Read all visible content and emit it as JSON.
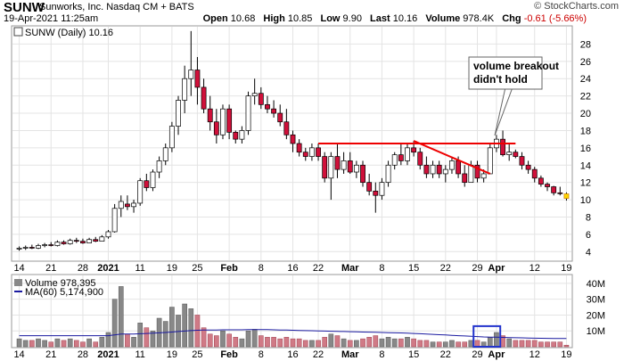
{
  "header": {
    "symbol": "SUNW",
    "company": "Sunworks, Inc. Nasdaq CM + BATS",
    "date": "19-Apr-2021 11:25am",
    "watermark": "© StockCharts.com",
    "open_label": "Open",
    "open": "10.68",
    "high_label": "High",
    "high": "10.85",
    "low_label": "Low",
    "low": "9.90",
    "last_label": "Last",
    "last": "10.16",
    "volume_label": "Volume",
    "volume": "978.4K",
    "chg_label": "Chg",
    "chg": "-0.61 (-5.66%)"
  },
  "price_panel": {
    "legend": "SUNW (Daily) 10.16",
    "annotation_line1": "volume breakout",
    "annotation_line2": "didn't hold"
  },
  "volume_panel": {
    "legend_volume": "Volume 978,395",
    "legend_ma": "MA(60) 5,174,900"
  },
  "chart_data": {
    "type": "candlestick",
    "title": "SUNW (Daily) 10.16",
    "y_ticks": [
      4,
      6,
      8,
      10,
      12,
      14,
      16,
      18,
      20,
      22,
      24,
      26,
      28
    ],
    "ylim": [
      3,
      30
    ],
    "volume_ticks": [
      "10M",
      "20M",
      "30M",
      "40M"
    ],
    "volume_ylim": [
      0,
      45
    ],
    "x_ticks": [
      {
        "label": "14",
        "index": 0
      },
      {
        "label": "21",
        "index": 5
      },
      {
        "label": "28",
        "index": 10
      },
      {
        "label": "2021",
        "index": 14,
        "bold": true
      },
      {
        "label": "11",
        "index": 19
      },
      {
        "label": "19",
        "index": 24
      },
      {
        "label": "25",
        "index": 28
      },
      {
        "label": "Feb",
        "index": 33,
        "bold": true
      },
      {
        "label": "8",
        "index": 38
      },
      {
        "label": "16",
        "index": 43
      },
      {
        "label": "22",
        "index": 47
      },
      {
        "label": "Mar",
        "index": 52,
        "bold": true
      },
      {
        "label": "8",
        "index": 57
      },
      {
        "label": "15",
        "index": 62
      },
      {
        "label": "22",
        "index": 67
      },
      {
        "label": "29",
        "index": 72
      },
      {
        "label": "Apr",
        "index": 75,
        "bold": true
      },
      {
        "label": "12",
        "index": 81
      },
      {
        "label": "19",
        "index": 86
      }
    ],
    "candles": [
      {
        "o": 4.3,
        "h": 4.6,
        "l": 4.1,
        "c": 4.4,
        "v": 5
      },
      {
        "o": 4.4,
        "h": 4.7,
        "l": 4.2,
        "c": 4.5,
        "v": 4
      },
      {
        "o": 4.5,
        "h": 4.8,
        "l": 4.3,
        "c": 4.4,
        "v": 4
      },
      {
        "o": 4.4,
        "h": 4.9,
        "l": 4.3,
        "c": 4.7,
        "v": 5
      },
      {
        "o": 4.7,
        "h": 5.0,
        "l": 4.5,
        "c": 4.8,
        "v": 4
      },
      {
        "o": 4.8,
        "h": 5.1,
        "l": 4.6,
        "c": 4.7,
        "v": 3
      },
      {
        "o": 4.7,
        "h": 5.3,
        "l": 4.6,
        "c": 5.1,
        "v": 5
      },
      {
        "o": 5.1,
        "h": 5.3,
        "l": 4.8,
        "c": 4.9,
        "v": 4
      },
      {
        "o": 4.9,
        "h": 5.5,
        "l": 4.8,
        "c": 5.3,
        "v": 5
      },
      {
        "o": 5.3,
        "h": 5.6,
        "l": 5.0,
        "c": 5.2,
        "v": 4
      },
      {
        "o": 5.2,
        "h": 5.5,
        "l": 4.9,
        "c": 5.0,
        "v": 3
      },
      {
        "o": 5.0,
        "h": 5.6,
        "l": 5.0,
        "c": 5.4,
        "v": 5
      },
      {
        "o": 5.4,
        "h": 5.7,
        "l": 5.1,
        "c": 5.2,
        "v": 3
      },
      {
        "o": 5.2,
        "h": 5.9,
        "l": 5.2,
        "c": 5.7,
        "v": 6
      },
      {
        "o": 5.7,
        "h": 6.5,
        "l": 5.5,
        "c": 6.3,
        "v": 9
      },
      {
        "o": 6.3,
        "h": 9.5,
        "l": 6.2,
        "c": 9.0,
        "v": 30
      },
      {
        "o": 9.0,
        "h": 10.5,
        "l": 8.0,
        "c": 9.8,
        "v": 38
      },
      {
        "o": 9.5,
        "h": 10.5,
        "l": 8.8,
        "c": 9.2,
        "v": 8
      },
      {
        "o": 9.2,
        "h": 10.0,
        "l": 8.5,
        "c": 9.6,
        "v": 6
      },
      {
        "o": 9.6,
        "h": 12.5,
        "l": 9.3,
        "c": 12.2,
        "v": 15
      },
      {
        "o": 12.2,
        "h": 13.0,
        "l": 11.0,
        "c": 11.4,
        "v": 12
      },
      {
        "o": 11.4,
        "h": 13.5,
        "l": 11.0,
        "c": 13.2,
        "v": 10
      },
      {
        "o": 13.2,
        "h": 15.0,
        "l": 12.5,
        "c": 14.5,
        "v": 18
      },
      {
        "o": 14.5,
        "h": 16.5,
        "l": 14.0,
        "c": 16.0,
        "v": 16
      },
      {
        "o": 16.0,
        "h": 19.0,
        "l": 15.5,
        "c": 18.5,
        "v": 25
      },
      {
        "o": 18.5,
        "h": 22.0,
        "l": 17.5,
        "c": 21.5,
        "v": 20
      },
      {
        "o": 21.5,
        "h": 25.5,
        "l": 20.0,
        "c": 24.0,
        "v": 27
      },
      {
        "o": 24.0,
        "h": 29.5,
        "l": 22.0,
        "c": 25.0,
        "v": 24
      },
      {
        "o": 25.0,
        "h": 26.5,
        "l": 21.0,
        "c": 23.0,
        "v": 20
      },
      {
        "o": 23.0,
        "h": 24.0,
        "l": 20.0,
        "c": 20.5,
        "v": 12
      },
      {
        "o": 20.5,
        "h": 22.0,
        "l": 18.0,
        "c": 19.0,
        "v": 8
      },
      {
        "o": 19.0,
        "h": 20.5,
        "l": 16.5,
        "c": 17.5,
        "v": 7
      },
      {
        "o": 17.5,
        "h": 21.0,
        "l": 17.0,
        "c": 20.5,
        "v": 10
      },
      {
        "o": 20.5,
        "h": 21.0,
        "l": 17.0,
        "c": 17.8,
        "v": 8
      },
      {
        "o": 17.8,
        "h": 18.0,
        "l": 16.5,
        "c": 17.0,
        "v": 6
      },
      {
        "o": 17.0,
        "h": 18.5,
        "l": 16.5,
        "c": 18.0,
        "v": 5
      },
      {
        "o": 18.0,
        "h": 22.5,
        "l": 17.5,
        "c": 22.0,
        "v": 10
      },
      {
        "o": 22.0,
        "h": 24.0,
        "l": 21.0,
        "c": 22.3,
        "v": 11
      },
      {
        "o": 22.3,
        "h": 23.0,
        "l": 20.5,
        "c": 21.0,
        "v": 7
      },
      {
        "o": 21.0,
        "h": 22.0,
        "l": 20.0,
        "c": 20.5,
        "v": 6
      },
      {
        "o": 20.5,
        "h": 21.5,
        "l": 19.5,
        "c": 20.0,
        "v": 6
      },
      {
        "o": 20.0,
        "h": 21.0,
        "l": 18.5,
        "c": 19.0,
        "v": 5
      },
      {
        "o": 19.0,
        "h": 20.5,
        "l": 17.0,
        "c": 17.5,
        "v": 6
      },
      {
        "o": 17.5,
        "h": 18.0,
        "l": 15.5,
        "c": 16.5,
        "v": 5
      },
      {
        "o": 16.5,
        "h": 17.0,
        "l": 15.0,
        "c": 15.5,
        "v": 5
      },
      {
        "o": 15.5,
        "h": 16.0,
        "l": 14.5,
        "c": 15.0,
        "v": 4
      },
      {
        "o": 15.0,
        "h": 16.5,
        "l": 14.5,
        "c": 16.0,
        "v": 4
      },
      {
        "o": 16.0,
        "h": 16.5,
        "l": 14.5,
        "c": 15.0,
        "v": 4
      },
      {
        "o": 15.0,
        "h": 15.5,
        "l": 12.0,
        "c": 12.5,
        "v": 6
      },
      {
        "o": 12.5,
        "h": 15.5,
        "l": 10.0,
        "c": 15.0,
        "v": 8
      },
      {
        "o": 15.0,
        "h": 16.5,
        "l": 12.5,
        "c": 13.5,
        "v": 7
      },
      {
        "o": 13.5,
        "h": 15.5,
        "l": 13.0,
        "c": 14.5,
        "v": 5
      },
      {
        "o": 14.5,
        "h": 15.5,
        "l": 13.0,
        "c": 13.2,
        "v": 4
      },
      {
        "o": 13.2,
        "h": 14.5,
        "l": 12.5,
        "c": 14.0,
        "v": 4
      },
      {
        "o": 14.0,
        "h": 14.5,
        "l": 11.5,
        "c": 12.0,
        "v": 5
      },
      {
        "o": 12.0,
        "h": 13.0,
        "l": 10.5,
        "c": 11.0,
        "v": 6
      },
      {
        "o": 11.0,
        "h": 12.0,
        "l": 8.5,
        "c": 10.5,
        "v": 7
      },
      {
        "o": 10.5,
        "h": 12.5,
        "l": 10.0,
        "c": 12.0,
        "v": 5
      },
      {
        "o": 12.0,
        "h": 14.5,
        "l": 11.5,
        "c": 14.0,
        "v": 6
      },
      {
        "o": 14.0,
        "h": 15.5,
        "l": 13.5,
        "c": 15.2,
        "v": 5
      },
      {
        "o": 15.2,
        "h": 16.5,
        "l": 14.0,
        "c": 14.5,
        "v": 5
      },
      {
        "o": 14.5,
        "h": 16.5,
        "l": 14.0,
        "c": 16.0,
        "v": 6
      },
      {
        "o": 16.0,
        "h": 16.8,
        "l": 15.0,
        "c": 15.5,
        "v": 5
      },
      {
        "o": 15.5,
        "h": 16.0,
        "l": 13.5,
        "c": 14.0,
        "v": 4
      },
      {
        "o": 14.0,
        "h": 15.0,
        "l": 12.5,
        "c": 13.0,
        "v": 4
      },
      {
        "o": 13.0,
        "h": 14.5,
        "l": 12.5,
        "c": 14.0,
        "v": 3
      },
      {
        "o": 14.0,
        "h": 14.5,
        "l": 12.5,
        "c": 13.0,
        "v": 3
      },
      {
        "o": 13.0,
        "h": 14.0,
        "l": 12.0,
        "c": 13.5,
        "v": 3
      },
      {
        "o": 13.5,
        "h": 15.0,
        "l": 13.0,
        "c": 14.5,
        "v": 4
      },
      {
        "o": 14.5,
        "h": 15.0,
        "l": 12.5,
        "c": 13.0,
        "v": 3
      },
      {
        "o": 13.0,
        "h": 14.0,
        "l": 11.5,
        "c": 12.0,
        "v": 3
      },
      {
        "o": 12.0,
        "h": 14.5,
        "l": 12.0,
        "c": 14.0,
        "v": 4
      },
      {
        "o": 14.0,
        "h": 14.5,
        "l": 12.0,
        "c": 12.5,
        "v": 4
      },
      {
        "o": 12.5,
        "h": 13.5,
        "l": 12.0,
        "c": 13.0,
        "v": 3
      },
      {
        "o": 13.0,
        "h": 16.5,
        "l": 13.0,
        "c": 16.0,
        "v": 6
      },
      {
        "o": 16.0,
        "h": 17.5,
        "l": 15.5,
        "c": 17.0,
        "v": 9
      },
      {
        "o": 17.0,
        "h": 18.0,
        "l": 15.0,
        "c": 15.2,
        "v": 7
      },
      {
        "o": 15.2,
        "h": 16.5,
        "l": 14.5,
        "c": 15.5,
        "v": 5
      },
      {
        "o": 15.5,
        "h": 15.8,
        "l": 14.8,
        "c": 15.0,
        "v": 4
      },
      {
        "o": 15.0,
        "h": 15.5,
        "l": 13.5,
        "c": 14.0,
        "v": 4
      },
      {
        "o": 14.0,
        "h": 14.5,
        "l": 13.0,
        "c": 13.5,
        "v": 4
      },
      {
        "o": 13.5,
        "h": 13.8,
        "l": 12.0,
        "c": 12.5,
        "v": 4
      },
      {
        "o": 12.5,
        "h": 12.8,
        "l": 11.5,
        "c": 11.8,
        "v": 3
      },
      {
        "o": 11.8,
        "h": 12.0,
        "l": 11.0,
        "c": 11.5,
        "v": 3
      },
      {
        "o": 11.5,
        "h": 11.6,
        "l": 10.5,
        "c": 10.8,
        "v": 3
      },
      {
        "o": 10.8,
        "h": 11.5,
        "l": 10.5,
        "c": 10.77,
        "v": 3
      },
      {
        "o": 10.68,
        "h": 10.85,
        "l": 9.9,
        "c": 10.16,
        "v": 1
      }
    ],
    "ma60": [
      7,
      7,
      7,
      7,
      7,
      7,
      7,
      7,
      7,
      7,
      7,
      7,
      7,
      7,
      7,
      7.5,
      8,
      8,
      8,
      8.2,
      8.4,
      8.6,
      8.8,
      9,
      9.3,
      9.6,
      9.9,
      10.2,
      10.4,
      10.5,
      10.6,
      10.6,
      10.7,
      10.7,
      10.7,
      10.7,
      10.8,
      10.8,
      10.8,
      10.8,
      10.7,
      10.6,
      10.5,
      10.4,
      10.3,
      10.2,
      10.1,
      10,
      9.9,
      9.8,
      9.7,
      9.6,
      9.5,
      9.4,
      9.3,
      9.2,
      9.1,
      9,
      8.9,
      8.8,
      8.7,
      8.6,
      8.4,
      8.2,
      8.0,
      7.8,
      7.6,
      7.4,
      7.2,
      7.0,
      6.8,
      6.6,
      6.4,
      6.2,
      6.1,
      6.0,
      5.9,
      5.8,
      5.7,
      5.6,
      5.5,
      5.4,
      5.35,
      5.3,
      5.25,
      5.2,
      5.17
    ],
    "resistance_line": {
      "price": 16.5,
      "from_index": 47,
      "to_index": 78
    },
    "trend_line": {
      "from_index": 62,
      "from_price": 16.8,
      "to_index": 74,
      "to_price": 13.0
    },
    "volume_box": {
      "from_index": 72,
      "to_index": 75
    },
    "colors": {
      "up": "#ffffff",
      "down": "#d0103a",
      "wick": "#000000",
      "vol_up": "#888888",
      "vol_down": "#d07a86",
      "ma": "#1a1aa0",
      "annot": "#ee0000",
      "box": "#2233cc",
      "last": "#ffd700"
    }
  }
}
